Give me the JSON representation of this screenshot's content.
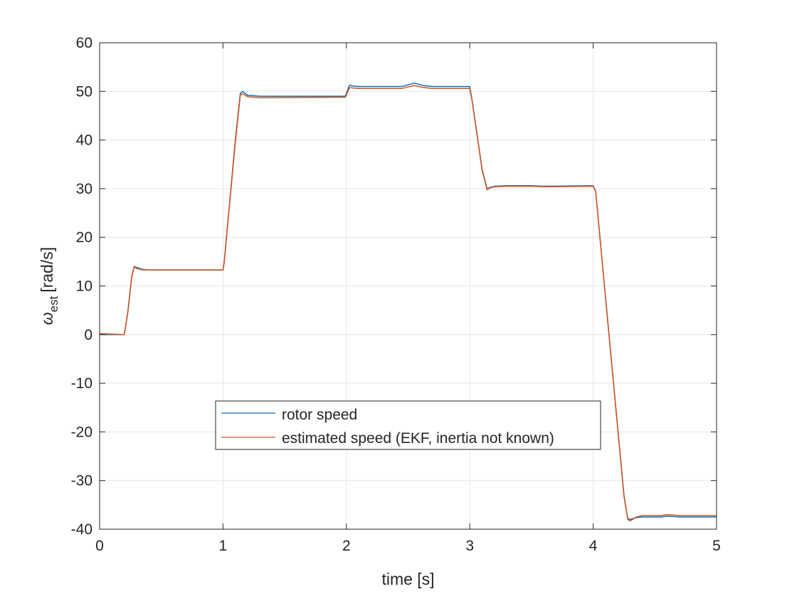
{
  "chart_data": {
    "type": "line",
    "xlabel": "time [s]",
    "ylabel": {
      "symbol": "ω",
      "subscript": "est",
      "unit": "[rad/s]"
    },
    "xlim": [
      0,
      5
    ],
    "ylim": [
      -40,
      60
    ],
    "xticks": [
      0,
      1,
      2,
      3,
      4,
      5
    ],
    "xtick_labels": [
      "0",
      "1",
      "2",
      "3",
      "4",
      "5"
    ],
    "yticks": [
      -40,
      -30,
      -20,
      -10,
      0,
      10,
      20,
      30,
      40,
      50,
      60
    ],
    "ytick_labels": [
      "-40",
      "-30",
      "-20",
      "-10",
      "0",
      "10",
      "20",
      "30",
      "40",
      "50",
      "60"
    ],
    "grid": true,
    "legend_position": "lower-center",
    "series": [
      {
        "name": "rotor speed",
        "color": "#0072BD",
        "x": [
          0,
          0.2,
          0.23,
          0.26,
          0.28,
          0.3,
          0.35,
          0.4,
          1.0,
          1.01,
          1.1,
          1.14,
          1.16,
          1.2,
          1.3,
          1.99,
          2.0,
          2.02,
          2.03,
          2.05,
          2.1,
          2.45,
          2.55,
          2.62,
          2.7,
          3.0,
          3.02,
          3.1,
          3.14,
          3.16,
          3.2,
          3.3,
          3.5,
          3.6,
          4.0,
          4.02,
          4.25,
          4.28,
          4.3,
          4.35,
          4.4,
          4.55,
          4.6,
          4.7,
          5.0
        ],
        "y": [
          0,
          0,
          5,
          12,
          14,
          13.8,
          13.4,
          13.3,
          13.3,
          15,
          40,
          49.6,
          50,
          49.2,
          49,
          49,
          49.5,
          51,
          51.3,
          51.1,
          51,
          51,
          51.7,
          51.2,
          51,
          51,
          48,
          34,
          30,
          30.2,
          30.5,
          30.6,
          30.6,
          30.5,
          30.6,
          29.5,
          -33,
          -37.8,
          -38,
          -37.6,
          -37.5,
          -37.5,
          -37.3,
          -37.5,
          -37.5
        ]
      },
      {
        "name": "estimated speed (EKF, inertia not known)",
        "color": "#D95319",
        "x": [
          0,
          0.2,
          0.23,
          0.26,
          0.28,
          0.3,
          0.35,
          0.4,
          1.0,
          1.01,
          1.1,
          1.14,
          1.16,
          1.2,
          1.3,
          1.99,
          2.0,
          2.02,
          2.03,
          2.05,
          2.1,
          2.45,
          2.55,
          2.62,
          2.7,
          3.0,
          3.02,
          3.1,
          3.14,
          3.16,
          3.2,
          3.3,
          3.5,
          3.6,
          4.0,
          4.02,
          4.25,
          4.28,
          4.3,
          4.35,
          4.4,
          4.55,
          4.6,
          4.7,
          5.0
        ],
        "y": [
          0.2,
          0,
          4.8,
          11.8,
          13.9,
          13.6,
          13.3,
          13.3,
          13.3,
          14.8,
          39.5,
          49.2,
          49.5,
          48.9,
          48.7,
          48.8,
          49.2,
          50.5,
          50.8,
          50.7,
          50.6,
          50.6,
          51.2,
          50.8,
          50.6,
          50.6,
          47.8,
          33.8,
          29.8,
          30.1,
          30.4,
          30.5,
          30.5,
          30.4,
          30.5,
          29.4,
          -33.2,
          -38,
          -38.3,
          -37.5,
          -37.2,
          -37.2,
          -37,
          -37.2,
          -37.2
        ]
      }
    ]
  }
}
